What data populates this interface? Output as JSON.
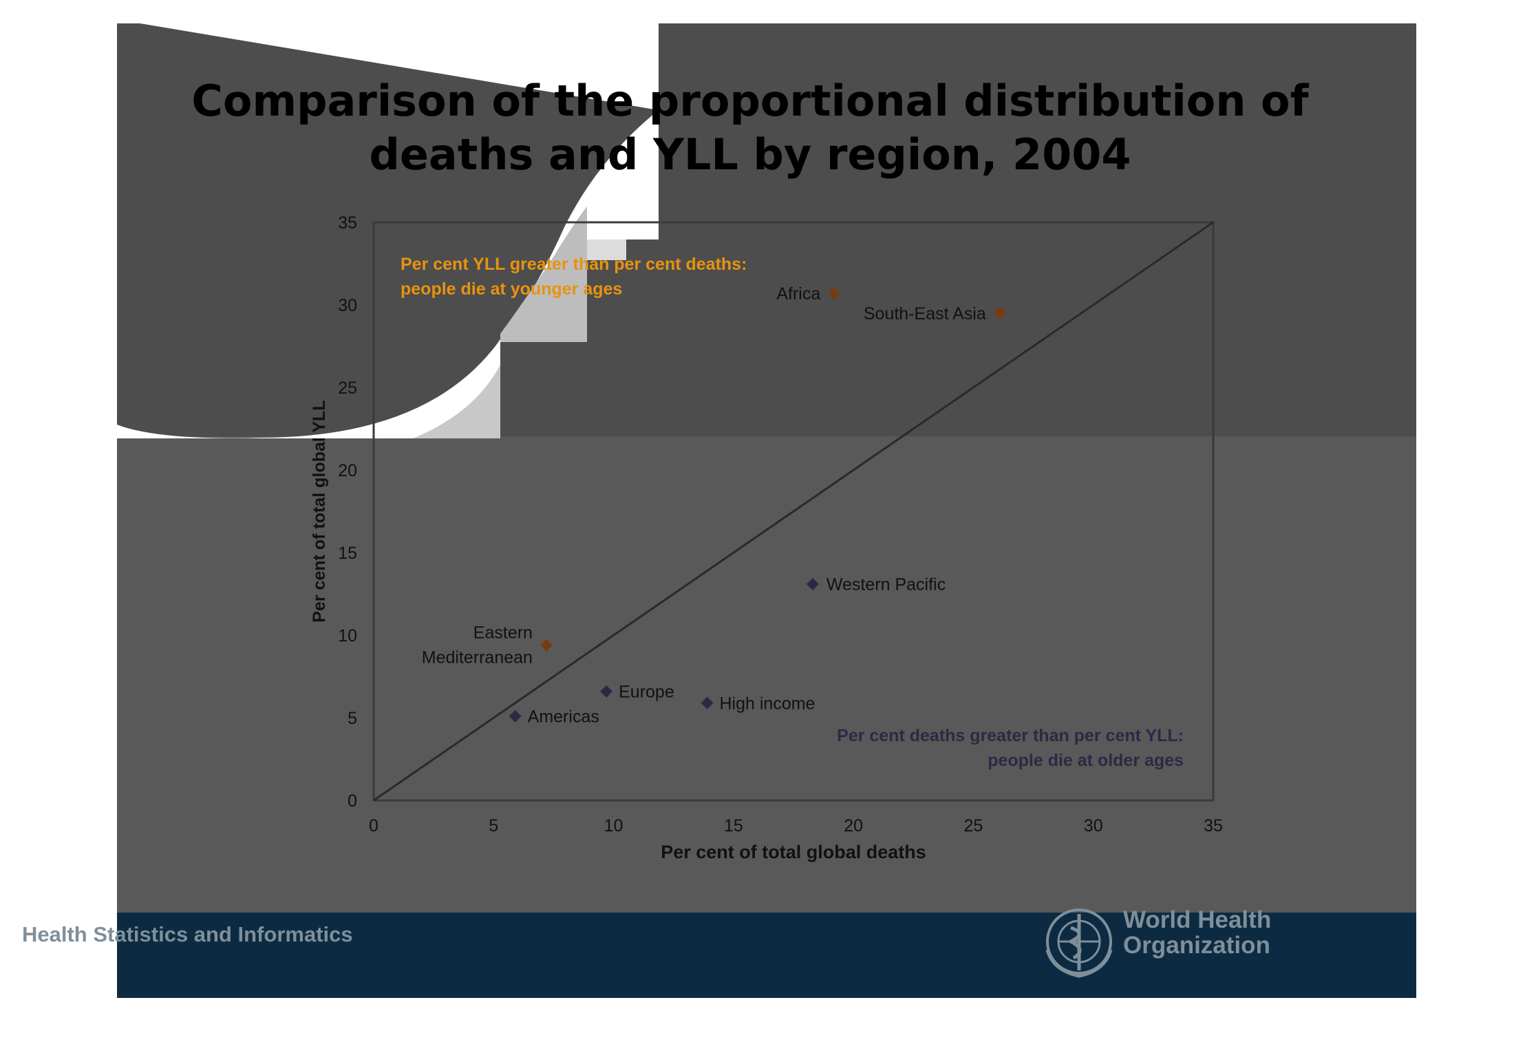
{
  "title_line1": "Comparison of the proportional distribution of",
  "title_line2": "deaths and YLL by region, 2004",
  "footer": {
    "department": "Health Statistics and Informatics",
    "org_line1": "World Health",
    "org_line2": "Organization"
  },
  "colors": {
    "slide_background": "#595959",
    "footer_background": "#0c2b42",
    "younger_marker": "#7a3a10",
    "older_marker": "#2b2a45",
    "younger_annotation": "#e8930f",
    "older_annotation": "#2b2a45"
  },
  "chart_data": {
    "type": "scatter",
    "xlabel": "Per cent of total global deaths",
    "ylabel": "Per cent of total global YLL",
    "xlim": [
      0,
      35
    ],
    "ylim": [
      0,
      35
    ],
    "xticks": [
      "0",
      "5",
      "10",
      "15",
      "20",
      "25",
      "30",
      "35"
    ],
    "yticks": [
      "0",
      "5",
      "10",
      "15",
      "20",
      "25",
      "30",
      "35"
    ],
    "reference_line": "y = x",
    "grid": false,
    "points": [
      {
        "label": "Africa",
        "x": 19.2,
        "y": 30.7,
        "group": "younger"
      },
      {
        "label": "South-East Asia",
        "x": 26.1,
        "y": 29.5,
        "group": "younger"
      },
      {
        "label": "Western Pacific",
        "x": 18.3,
        "y": 13.1,
        "group": "older"
      },
      {
        "label": "Eastern Mediterranean",
        "x": 7.2,
        "y": 9.4,
        "group": "younger"
      },
      {
        "label": "Europe",
        "x": 9.7,
        "y": 6.6,
        "group": "older"
      },
      {
        "label": "High income",
        "x": 13.9,
        "y": 5.9,
        "group": "older"
      },
      {
        "label": "Americas",
        "x": 5.9,
        "y": 5.1,
        "group": "older"
      }
    ],
    "annotations": [
      {
        "lines": [
          "Per cent YLL greater than per cent deaths:",
          "people die at younger ages"
        ],
        "group": "younger"
      },
      {
        "lines": [
          "Per cent deaths greater than per cent YLL:",
          "people die at older ages"
        ],
        "group": "older"
      }
    ]
  }
}
